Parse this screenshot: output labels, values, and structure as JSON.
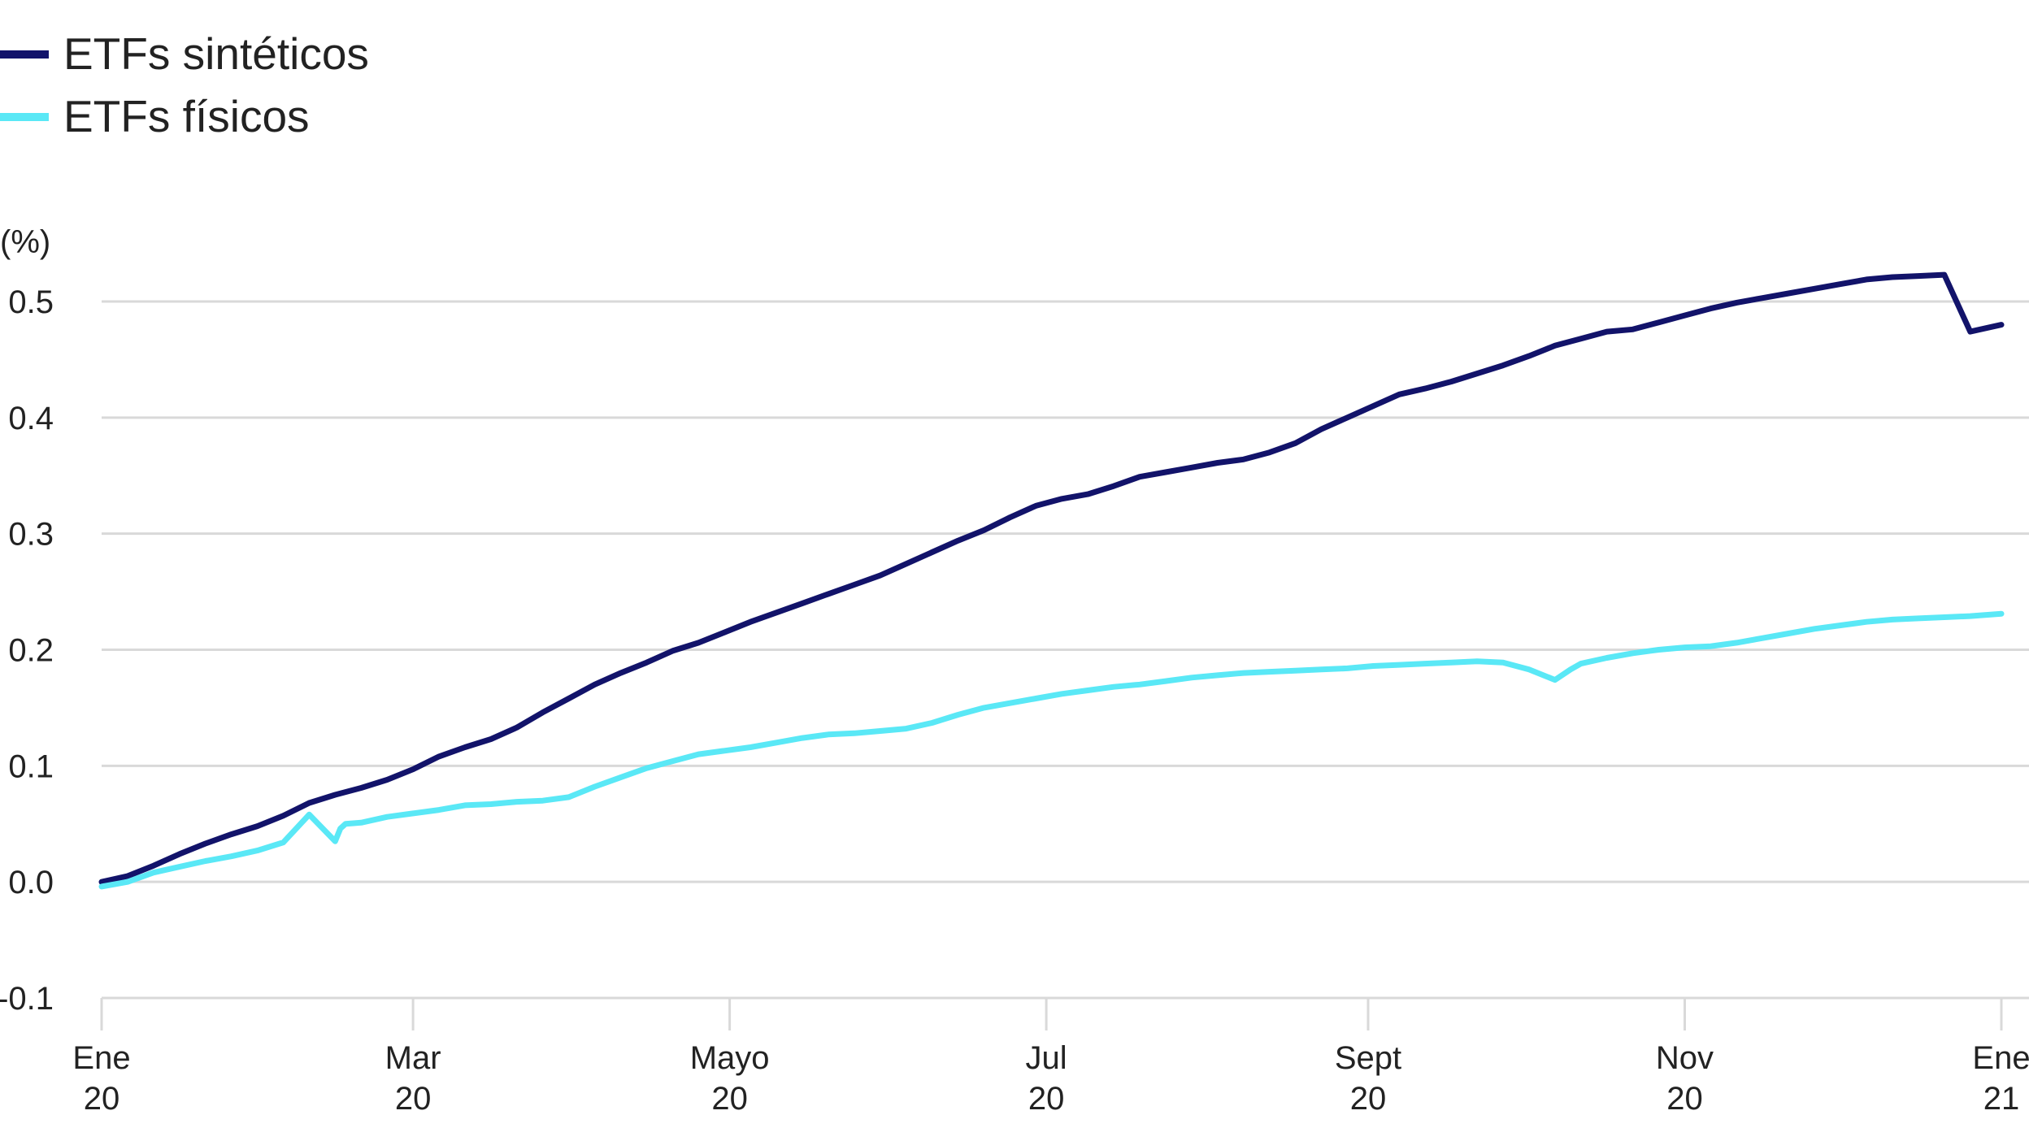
{
  "legend": [
    {
      "name": "ETFs sintéticos",
      "color": "#12136a"
    },
    {
      "name": "ETFs físicos",
      "color": "#5ae8f6"
    }
  ],
  "chart_data": {
    "type": "line",
    "unit_label": "(%)",
    "ylim": [
      -0.1,
      0.5
    ],
    "y_ticks": [
      "0.5",
      "0.4",
      "0.3",
      "0.2",
      "0.1",
      "0.0",
      "-0.1"
    ],
    "y_tick_values": [
      0.5,
      0.4,
      0.3,
      0.2,
      0.1,
      0.0,
      -0.1
    ],
    "x_ticks": [
      {
        "line1": "Ene",
        "line2": "20",
        "day": 0
      },
      {
        "line1": "Mar",
        "line2": "20",
        "day": 60
      },
      {
        "line1": "Mayo",
        "line2": "20",
        "day": 121
      },
      {
        "line1": "Jul",
        "line2": "20",
        "day": 182
      },
      {
        "line1": "Sept",
        "line2": "20",
        "day": 244
      },
      {
        "line1": "Nov",
        "line2": "20",
        "day": 305
      },
      {
        "line1": "Ene",
        "line2": "21",
        "day": 366
      }
    ],
    "grid": true,
    "legend_position": "top-left",
    "series": [
      {
        "name": "ETFs sintéticos",
        "color": "#12136a",
        "x": [
          0,
          5,
          10,
          15,
          20,
          25,
          30,
          35,
          40,
          45,
          50,
          55,
          60,
          65,
          70,
          75,
          80,
          85,
          90,
          95,
          100,
          105,
          110,
          115,
          120,
          125,
          130,
          135,
          140,
          145,
          150,
          155,
          160,
          165,
          170,
          175,
          180,
          185,
          190,
          195,
          200,
          205,
          210,
          215,
          220,
          225,
          230,
          235,
          240,
          245,
          250,
          255,
          260,
          265,
          270,
          275,
          280,
          285,
          290,
          295,
          300,
          305,
          310,
          315,
          320,
          325,
          330,
          335,
          340,
          345,
          350,
          355,
          360,
          366
        ],
        "y": [
          0.0,
          0.005,
          0.014,
          0.024,
          0.033,
          0.041,
          0.048,
          0.057,
          0.068,
          0.075,
          0.081,
          0.088,
          0.097,
          0.108,
          0.116,
          0.123,
          0.133,
          0.146,
          0.158,
          0.17,
          0.18,
          0.189,
          0.199,
          0.206,
          0.215,
          0.224,
          0.232,
          0.24,
          0.248,
          0.256,
          0.264,
          0.274,
          0.284,
          0.294,
          0.303,
          0.314,
          0.324,
          0.33,
          0.334,
          0.341,
          0.349,
          0.353,
          0.357,
          0.361,
          0.364,
          0.37,
          0.378,
          0.39,
          0.4,
          0.41,
          0.42,
          0.425,
          0.431,
          0.438,
          0.445,
          0.453,
          0.462,
          0.468,
          0.474,
          0.476,
          0.482,
          0.488,
          0.494,
          0.499,
          0.503,
          0.507,
          0.511,
          0.515,
          0.519,
          0.521,
          0.522,
          0.523,
          0.474,
          0.48
        ]
      },
      {
        "name": "ETFs físicos",
        "color": "#5ae8f6",
        "x": [
          0,
          5,
          10,
          15,
          20,
          25,
          30,
          35,
          40,
          45,
          46,
          47,
          50,
          55,
          60,
          65,
          70,
          75,
          80,
          85,
          90,
          95,
          100,
          105,
          110,
          115,
          120,
          125,
          130,
          135,
          140,
          145,
          150,
          155,
          160,
          165,
          170,
          175,
          180,
          185,
          190,
          195,
          200,
          205,
          210,
          215,
          220,
          225,
          230,
          235,
          240,
          245,
          250,
          255,
          260,
          265,
          270,
          275,
          280,
          283,
          285,
          290,
          295,
          300,
          305,
          310,
          315,
          320,
          325,
          330,
          335,
          340,
          345,
          350,
          355,
          360,
          366
        ],
        "y": [
          -0.004,
          0.0,
          0.008,
          0.013,
          0.018,
          0.022,
          0.027,
          0.034,
          0.058,
          0.035,
          0.046,
          0.05,
          0.051,
          0.056,
          0.059,
          0.062,
          0.066,
          0.067,
          0.069,
          0.07,
          0.073,
          0.082,
          0.09,
          0.098,
          0.104,
          0.11,
          0.113,
          0.116,
          0.12,
          0.124,
          0.127,
          0.128,
          0.13,
          0.132,
          0.137,
          0.144,
          0.15,
          0.154,
          0.158,
          0.162,
          0.165,
          0.168,
          0.17,
          0.173,
          0.176,
          0.178,
          0.18,
          0.181,
          0.182,
          0.183,
          0.184,
          0.186,
          0.187,
          0.188,
          0.189,
          0.19,
          0.189,
          0.183,
          0.174,
          0.183,
          0.188,
          0.193,
          0.197,
          0.2,
          0.202,
          0.203,
          0.206,
          0.21,
          0.214,
          0.218,
          0.221,
          0.224,
          0.226,
          0.227,
          0.228,
          0.229,
          0.231
        ]
      }
    ]
  }
}
